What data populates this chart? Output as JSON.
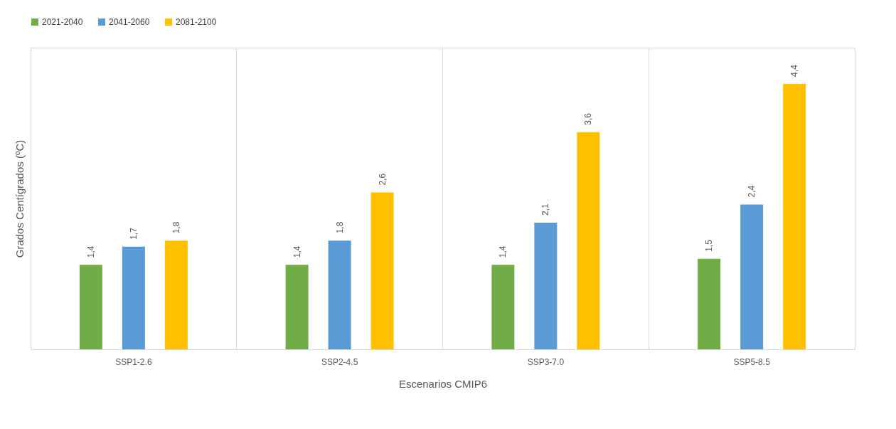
{
  "chart_data": {
    "type": "bar",
    "xlabel": "Escenarios CMIP6",
    "ylabel": "Grados Centígrados (ºC)",
    "categories": [
      "SSP1-2.6",
      "SSP2-4.5",
      "SSP3-7.0",
      "SSP5-8.5"
    ],
    "series": [
      {
        "name": "2021-2040",
        "color": "#70ad47",
        "values": [
          1.4,
          1.4,
          1.4,
          1.5
        ],
        "value_labels": [
          "1,4",
          "1,4",
          "1,4",
          "1,5"
        ]
      },
      {
        "name": "2041-2060",
        "color": "#5b9bd5",
        "values": [
          1.7,
          1.8,
          2.1,
          2.4
        ],
        "value_labels": [
          "1,7",
          "1,8",
          "2,1",
          "2,4"
        ]
      },
      {
        "name": "2081-2100",
        "color": "#ffc000",
        "values": [
          1.8,
          2.6,
          3.6,
          4.4
        ],
        "value_labels": [
          "1,8",
          "2,6",
          "3,6",
          "4,4"
        ]
      }
    ],
    "ylim": [
      0,
      5
    ],
    "tick_labels": "x",
    "grid": "x",
    "legend": "top"
  }
}
